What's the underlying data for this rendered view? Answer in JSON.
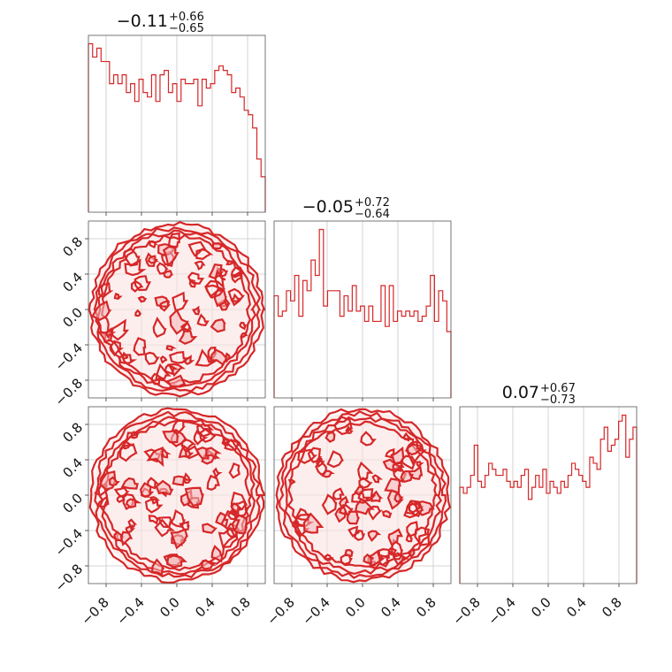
{
  "chart_data": {
    "type": "corner",
    "colors": {
      "series": "#d62728",
      "grid": "#c8c8c8",
      "frame": "#555555"
    },
    "tick_values": [
      -0.8,
      -0.4,
      0.0,
      0.4,
      0.8
    ],
    "tick_labels": [
      "−0.8",
      "−0.4",
      "0.0",
      "0.4",
      "0.8"
    ],
    "range": [
      -1,
      1
    ],
    "grid": true,
    "diagonal": [
      {
        "title": {
          "median": "−0.11",
          "upper": "+0.66",
          "lower": "−0.65"
        },
        "counts": [
          38,
          35,
          37,
          34,
          34,
          29,
          31,
          29,
          31,
          27,
          29,
          25,
          30,
          27,
          26,
          31,
          25,
          31,
          32,
          27,
          29,
          25,
          30,
          29,
          29,
          30,
          24,
          30,
          28,
          29,
          32,
          33,
          32,
          31,
          27,
          28,
          26,
          23,
          22,
          19,
          12,
          8
        ]
      },
      {
        "title": {
          "median": "−0.05",
          "upper": "+0.72",
          "lower": "−0.64"
        },
        "counts": [
          20,
          16,
          17,
          21,
          19,
          24,
          16,
          23,
          21,
          27,
          24,
          33,
          18,
          21,
          21,
          21,
          16,
          20,
          17,
          22,
          17,
          18,
          15,
          18,
          15,
          15,
          22,
          14,
          22,
          15,
          17,
          16,
          17,
          16,
          17,
          15,
          16,
          18,
          24,
          15,
          21,
          19,
          13
        ]
      },
      {
        "title": {
          "median": "0.07",
          "upper": "+0.67",
          "lower": "−0.73"
        },
        "counts": [
          16,
          15,
          16,
          18,
          23,
          17,
          16,
          18,
          20,
          19,
          18,
          18,
          19,
          17,
          16,
          17,
          16,
          18,
          19,
          14,
          16,
          18,
          16,
          19,
          15,
          17,
          16,
          15,
          17,
          16,
          18,
          20,
          19,
          18,
          17,
          16,
          21,
          20,
          19,
          24,
          26,
          22,
          23,
          24,
          27,
          28,
          21,
          24,
          26
        ]
      }
    ],
    "off_diagonal": [
      {
        "row": 1,
        "col": 0,
        "x": "param_0",
        "y": "param_1",
        "support": "unit_disk_uniform"
      },
      {
        "row": 2,
        "col": 0,
        "x": "param_0",
        "y": "param_2",
        "support": "unit_disk_uniform"
      },
      {
        "row": 2,
        "col": 1,
        "x": "param_1",
        "y": "param_2",
        "support": "unit_disk_uniform"
      }
    ]
  }
}
